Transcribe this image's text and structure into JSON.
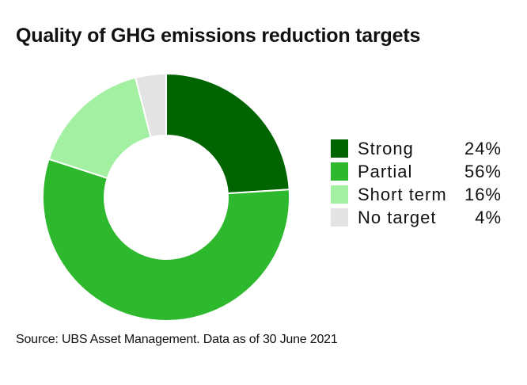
{
  "title": "Quality of GHG emissions reduction targets",
  "source": "Source: UBS Asset Management. Data as of 30 June 2021",
  "chart_data": {
    "type": "pie",
    "style": "donut",
    "categories": [
      "Strong",
      "Partial",
      "Short term",
      "No target"
    ],
    "values": [
      24,
      56,
      16,
      4
    ],
    "value_labels": [
      "24%",
      "56%",
      "16%",
      "4%"
    ],
    "colors": [
      "#006400",
      "#2db82d",
      "#a3f0a3",
      "#e3e3e3"
    ],
    "start_angle": "12 o'clock",
    "direction": "clockwise",
    "legend_position": "right"
  }
}
